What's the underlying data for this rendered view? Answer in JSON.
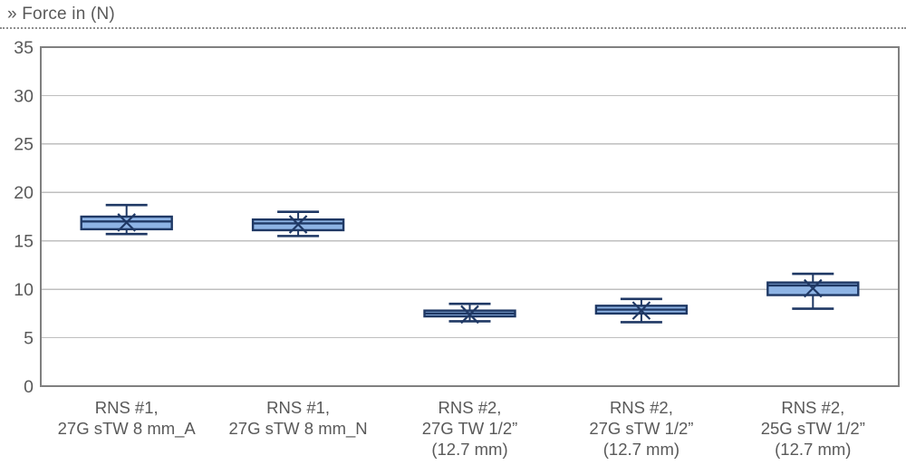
{
  "header": {
    "title": "» Force in (N)"
  },
  "colors": {
    "title_text": "#595959",
    "axis_text": "#595959",
    "grid_line": "#BFBFBF",
    "plot_border": "#808080",
    "box_fill": "#8EB4E5",
    "box_line": "#1F3864",
    "dotted_rule": "#8F8F8F",
    "background": "#FFFFFF"
  },
  "chart_data": {
    "type": "boxplot",
    "title": "Force in (N)",
    "xlabel": "",
    "ylabel": "",
    "ylim": [
      0,
      35
    ],
    "ytick_step": 5,
    "yticks": [
      0,
      5,
      10,
      15,
      20,
      25,
      30,
      35
    ],
    "grid": true,
    "legend": "none",
    "categories": [
      [
        "RNS #1,",
        "27G sTW 8 mm_A"
      ],
      [
        "RNS #1,",
        "27G sTW 8 mm_N"
      ],
      [
        "RNS #2,",
        "27G TW 1/2”",
        "(12.7 mm)"
      ],
      [
        "RNS #2,",
        "27G sTW 1/2”",
        "(12.7 mm)"
      ],
      [
        "RNS #2,",
        "25G sTW 1/2”",
        "(12.7 mm)"
      ]
    ],
    "boxes": [
      {
        "min": 15.7,
        "q1": 16.2,
        "median": 17.0,
        "q3": 17.5,
        "max": 18.7,
        "mean": 16.9
      },
      {
        "min": 15.5,
        "q1": 16.1,
        "median": 16.8,
        "q3": 17.2,
        "max": 18.0,
        "mean": 16.7
      },
      {
        "min": 6.7,
        "q1": 7.2,
        "median": 7.5,
        "q3": 7.8,
        "max": 8.5,
        "mean": 7.4
      },
      {
        "min": 6.6,
        "q1": 7.5,
        "median": 7.9,
        "q3": 8.3,
        "max": 9.0,
        "mean": 7.8
      },
      {
        "min": 8.0,
        "q1": 9.4,
        "median": 10.4,
        "q3": 10.7,
        "max": 11.6,
        "mean": 10.1
      }
    ]
  }
}
